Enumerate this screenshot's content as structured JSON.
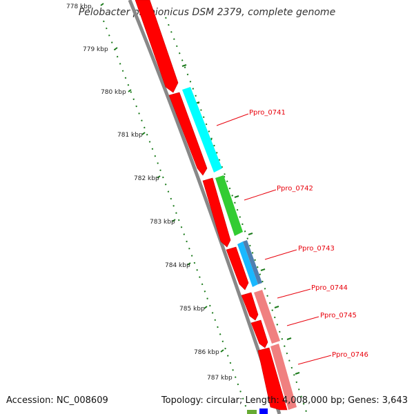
{
  "title": "Pelobacter propionicus DSM 2379, complete genome",
  "accession": "Accession: NC_008609",
  "summary": "Topology: circular; Length: 4,008,000 bp; Genes: 3,643",
  "colors": {
    "backbone": "#888888",
    "forward_gene": "#ff0000",
    "ticks": "#1a7a1a",
    "label_text": "#e8000b",
    "cyan_gene": "#00ffff",
    "green_gene": "#33cc33",
    "lightblue_gene": "#19b8ff",
    "steelblue_gene": "#4f7fb0",
    "pink_gene": "#f08080"
  },
  "kbp_labels": [
    "778 kbp",
    "779 kbp",
    "780 kbp",
    "781 kbp",
    "782 kbp",
    "783 kbp",
    "784 kbp",
    "785 kbp",
    "786 kbp",
    "787 kbp"
  ],
  "gene_labels": [
    "Ppro_0741",
    "Ppro_0742",
    "Ppro_0743",
    "Ppro_0744",
    "Ppro_0745",
    "Ppro_0746"
  ]
}
